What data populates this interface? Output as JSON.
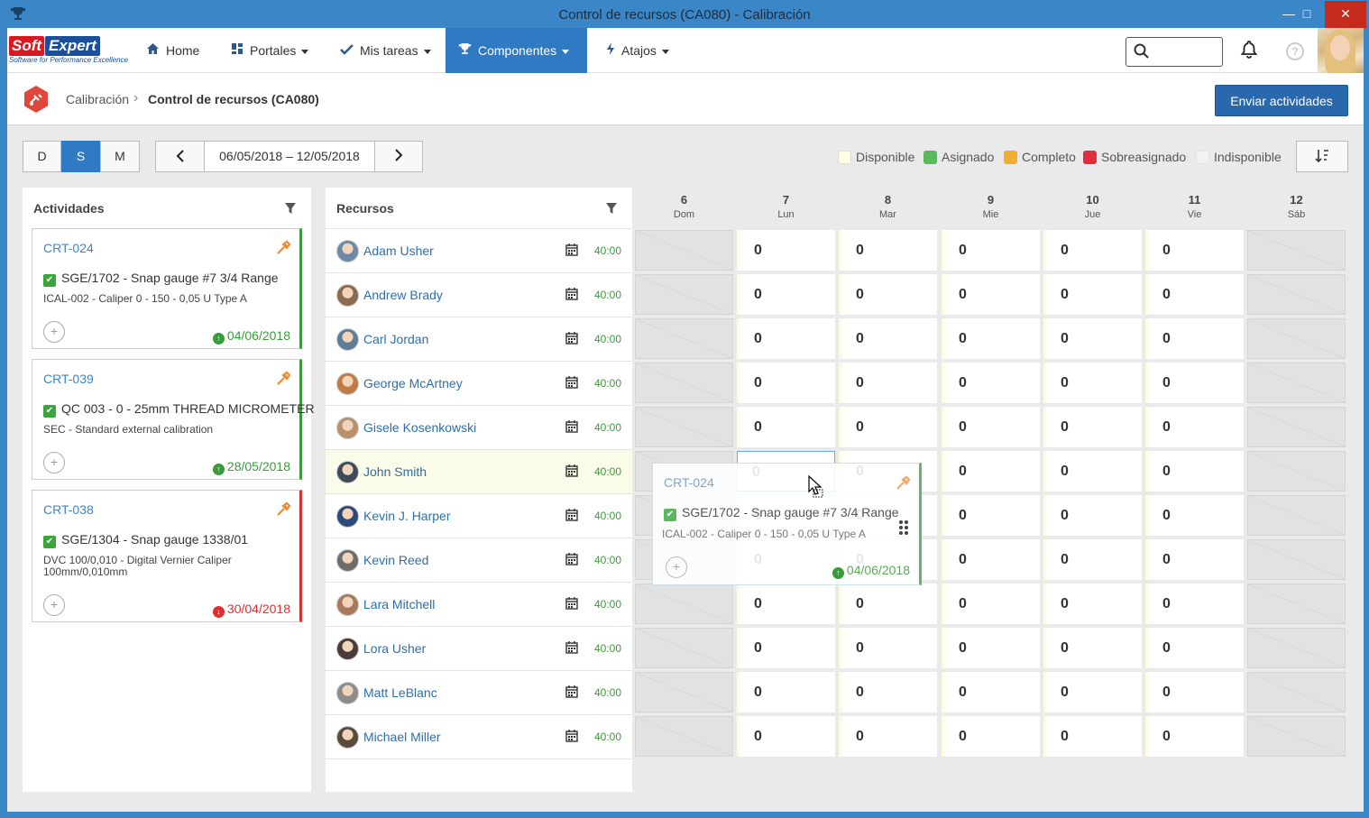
{
  "window": {
    "title": "Control de recursos (CA080) - Calibración",
    "minimize": "—",
    "maximize": "□",
    "close": "✕"
  },
  "logo": {
    "soft": "Soft",
    "expert": "Expert",
    "tagline": "Software for Performance Excellence"
  },
  "nav": {
    "items": [
      {
        "label": "Home",
        "icon": "home-icon"
      },
      {
        "label": "Portales",
        "icon": "grid-icon"
      },
      {
        "label": "Mis tareas",
        "icon": "check-icon"
      },
      {
        "label": "Componentes",
        "icon": "trophy-icon"
      },
      {
        "label": "Atajos",
        "icon": "bolt-icon"
      }
    ],
    "help": "?"
  },
  "header": {
    "breadcrumb_parent": "Calibración",
    "breadcrumb_separator": "›",
    "page_title": "Control de recursos (CA080)",
    "send_button": "Enviar actividades"
  },
  "toolbar": {
    "views": [
      "D",
      "S",
      "M"
    ],
    "active_view": "S",
    "date_range": "06/05/2018 – 12/05/2018",
    "prev": "‹",
    "next": "›",
    "legend": [
      {
        "label": "Disponible",
        "color": "#fffbe6"
      },
      {
        "label": "Asignado",
        "color": "#5cb85c"
      },
      {
        "label": "Completo",
        "color": "#f0ad30"
      },
      {
        "label": "Sobreasignado",
        "color": "#e02e3c"
      },
      {
        "label": "Indisponible",
        "color": "#f2f2f2"
      }
    ]
  },
  "activities": {
    "title": "Actividades",
    "cards": [
      {
        "code": "CRT-024",
        "desc": "SGE/1702 - Snap gauge #7 3/4 Range",
        "sub": "ICAL-002 - Caliper 0 - 150 - 0,05 U Type A",
        "date": "04/06/2018",
        "status": "green",
        "plus": "+"
      },
      {
        "code": "CRT-039",
        "desc": "QC 003 - 0 - 25mm THREAD MICROMETER",
        "sub": "SEC - Standard external calibration",
        "date": "28/05/2018",
        "status": "green",
        "plus": "+"
      },
      {
        "code": "CRT-038",
        "desc": "SGE/1304 - Snap gauge 1338/01",
        "sub": "DVC 100/0,010 - Digital Vernier Caliper 100mm/0,010mm",
        "date": "30/04/2018",
        "status": "red",
        "plus": "+"
      }
    ]
  },
  "resources": {
    "title": "Recursos",
    "rows": [
      {
        "name": "Adam Usher",
        "hours": "40:00"
      },
      {
        "name": "Andrew Brady",
        "hours": "40:00"
      },
      {
        "name": "Carl Jordan",
        "hours": "40:00"
      },
      {
        "name": "George McArtney",
        "hours": "40:00"
      },
      {
        "name": "Gisele Kosenkowski",
        "hours": "40:00"
      },
      {
        "name": "John Smith",
        "hours": "40:00"
      },
      {
        "name": "Kevin J. Harper",
        "hours": "40:00"
      },
      {
        "name": "Kevin Reed",
        "hours": "40:00"
      },
      {
        "name": "Lara Mitchell",
        "hours": "40:00"
      },
      {
        "name": "Lora Usher",
        "hours": "40:00"
      },
      {
        "name": "Matt LeBlanc",
        "hours": "40:00"
      },
      {
        "name": "Michael Miller",
        "hours": "40:00"
      }
    ]
  },
  "calendar": {
    "days": [
      {
        "num": "6",
        "name": "Dom",
        "off": true
      },
      {
        "num": "7",
        "name": "Lun",
        "off": false
      },
      {
        "num": "8",
        "name": "Mar",
        "off": false
      },
      {
        "num": "9",
        "name": "Mie",
        "off": false
      },
      {
        "num": "10",
        "name": "Jue",
        "off": false
      },
      {
        "num": "11",
        "name": "Vie",
        "off": false
      },
      {
        "num": "12",
        "name": "Sáb",
        "off": true
      }
    ],
    "cell_value": "0"
  },
  "drag_card": {
    "code": "CRT-024",
    "desc": "SGE/1702 - Snap gauge #7 3/4 Range",
    "sub": "ICAL-002 - Caliper 0 - 150 - 0,05 U Type A",
    "date": "04/06/2018",
    "plus": "+"
  }
}
